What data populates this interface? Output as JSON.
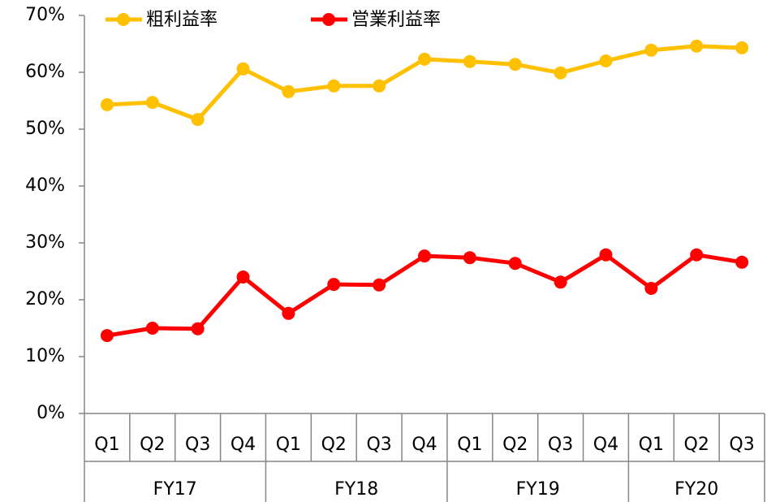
{
  "chart_data": {
    "type": "line",
    "categories": [
      "Q1",
      "Q2",
      "Q3",
      "Q4",
      "Q1",
      "Q2",
      "Q3",
      "Q4",
      "Q1",
      "Q2",
      "Q3",
      "Q4",
      "Q1",
      "Q2",
      "Q3"
    ],
    "groups": [
      "FY17",
      "FY18",
      "FY19",
      "FY20"
    ],
    "series": [
      {
        "name": "粗利益率",
        "color": "#FFC000",
        "values": [
          54.3,
          54.7,
          51.7,
          60.6,
          56.6,
          57.6,
          57.6,
          62.3,
          61.9,
          61.4,
          59.9,
          62.0,
          63.9,
          64.6,
          64.3
        ]
      },
      {
        "name": "営業利益率",
        "color": "#FF0000",
        "values": [
          13.7,
          15.0,
          14.9,
          24.0,
          17.6,
          22.7,
          22.6,
          27.7,
          27.4,
          26.4,
          23.1,
          27.9,
          22.0,
          27.9,
          26.6
        ]
      }
    ],
    "ylim": [
      0,
      70
    ],
    "yticks": [
      {
        "value": 0,
        "label": "0%"
      },
      {
        "value": 10,
        "label": "10%"
      },
      {
        "value": 20,
        "label": "20%"
      },
      {
        "value": 30,
        "label": "30%"
      },
      {
        "value": 40,
        "label": "40%"
      },
      {
        "value": 50,
        "label": "50%"
      },
      {
        "value": 60,
        "label": "60%"
      },
      {
        "value": 70,
        "label": "70%"
      }
    ],
    "grid": false,
    "legend": "top"
  }
}
